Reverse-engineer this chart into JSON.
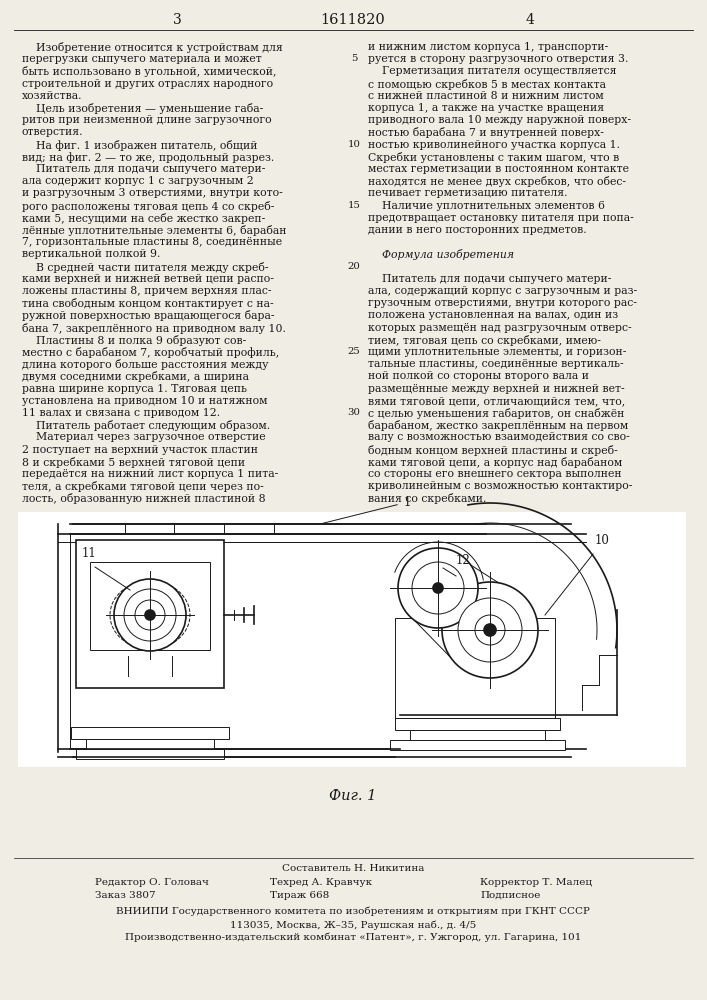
{
  "patent_number": "1611820",
  "background_color": "#f0ede4",
  "text_color": "#1a1a1a",
  "col1_lines": [
    "    Изобретение относится к устройствам для",
    "перегрузки сыпучего материала и может",
    "быть использовано в угольной, химической,",
    "строительной и других отраслях народного",
    "хозяйства.",
    "    Цель изобретения — уменьшение габа-",
    "ритов при неизменной длине загрузочного",
    "отверстия.",
    "    На фиг. 1 изображен питатель, общий",
    "вид; на фиг. 2 — то же, продольный разрез.",
    "    Питатель для подачи сыпучего матери-",
    "ала содержит корпус 1 с загрузочным 2",
    "и разгрузочным 3 отверстиями, внутри кото-",
    "рого расположены тяговая цепь 4 со скреб-",
    "ками 5, несущими на себе жестко закреп-",
    "лённые уплотнительные элементы 6, барабан",
    "7, горизонтальные пластины 8, соединённые",
    "вертикальной полкой 9.",
    "    В средней части питателя между скреб-",
    "ками верхней и нижней ветвей цепи распо-",
    "ложены пластины 8, причем верхняя плас-",
    "тина свободным концом контактирует с на-",
    "ружной поверхностью вращающегося бара-",
    "бана 7, закреплённого на приводном валу 10.",
    "    Пластины 8 и полка 9 образуют сов-",
    "местно с барабаном 7, коробчатый профиль,",
    "длина которого больше расстояния между",
    "двумя соседними скребками, а ширина",
    "равна ширине корпуса 1. Тяговая цепь",
    "установлена на приводном 10 и натяжном",
    "11 валах и связана с приводом 12.",
    "    Питатель работает следующим образом.",
    "    Материал через загрузочное отверстие",
    "2 поступает на верхний участок пластин",
    "8 и скребками 5 верхней тяговой цепи",
    "передаётся на нижний лист корпуса 1 пита-",
    "теля, а скребками тяговой цепи через по-",
    "лость, образованную нижней пластиной 8"
  ],
  "col2_lines": [
    "и нижним листом корпуса 1, транспорти-",
    "руется в сторону разгрузочного отверстия 3.",
    "    Герметизация питателя осуществляется",
    "с помощью скребков 5 в местах контакта",
    "с нижней пластиной 8 и нижним листом",
    "корпуса 1, а также на участке вращения",
    "приводного вала 10 между наружной поверх-",
    "ностью барабана 7 и внутренней поверх-",
    "ностью криволинейного участка корпуса 1.",
    "Скребки установлены с таким шагом, что в",
    "местах герметизации в постоянном контакте",
    "находятся не менее двух скребков, что обес-",
    "печивает герметизацию питателя.",
    "    Наличие уплотнительных элементов 6",
    "предотвращает остановку питателя при попа-",
    "дании в него посторонних предметов.",
    "",
    "ITALIC_Формула изобретения",
    "",
    "    Питатель для подачи сыпучего матери-",
    "ала, содержащий корпус с загрузочным и раз-",
    "грузочным отверстиями, внутри которого рас-",
    "положена установленная на валах, один из",
    "которых размещён над разгрузочным отверс-",
    "тием, тяговая цепь со скребками, имею-",
    "щими уплотнительные элементы, и горизон-",
    "тальные пластины, соединённые вертикаль-",
    "ной полкой со стороны второго вала и",
    "размещённые между верхней и нижней вет-",
    "вями тяговой цепи, отличающийся тем, что,",
    "с целью уменьшения габаритов, он снабжён",
    "барабаном, жестко закреплённым на первом",
    "валу с возможностью взаимодействия со сво-",
    "бодным концом верхней пластины и скреб-",
    "ками тяговой цепи, а корпус над барабаном",
    "со стороны его внешнего сектора выполнен",
    "криволинейным с возможностью контактиро-",
    "вания со скребками."
  ],
  "line_numbers": [
    [
      1,
      "5"
    ],
    [
      8,
      "10"
    ],
    [
      13,
      "15"
    ],
    [
      18,
      "20"
    ],
    [
      25,
      "25"
    ],
    [
      30,
      "30"
    ]
  ],
  "fig_label": "Фиг. 1",
  "составитель": "Составитель Н. Никитина",
  "editor_line1": "Редактор О. Головач",
  "editor_line2": "Заказ 3807",
  "techred_line1": "Техред А. Кравчук",
  "techred_line2": "Тираж 668",
  "corrector_line1": "Корректор Т. Малец",
  "corrector_line2": "Подписное",
  "vnipi_line1": "ВНИИПИ Государственного комитета по изобретениям и открытиям при ГКНТ СССР",
  "vnipi_line2": "113035, Москва, Ж–35, Раушская наб., д. 4/5",
  "vnipi_line3": "Производственно-издательский комбинат «Патент», г. Ужгород, ул. Гагарина, 101"
}
